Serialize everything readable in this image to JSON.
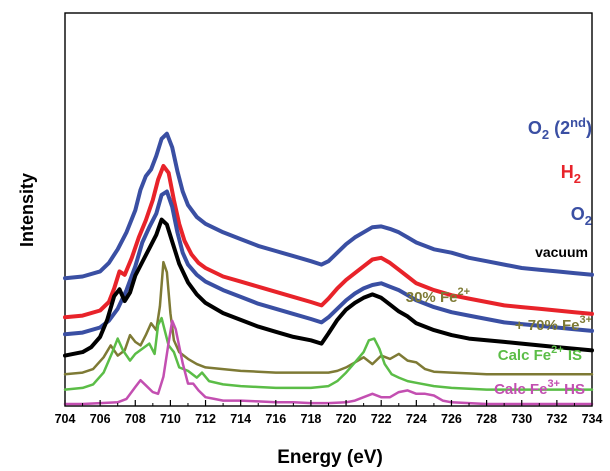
{
  "chart_data": {
    "type": "line",
    "title": "",
    "xlabel": "Energy (eV)",
    "ylabel": "Intensity",
    "xlim": [
      704,
      734
    ],
    "xticks": [
      704,
      706,
      708,
      710,
      712,
      714,
      716,
      718,
      720,
      722,
      724,
      726,
      728,
      730,
      732,
      734
    ],
    "ylim": [
      0,
      1
    ],
    "grid": false,
    "legend": "none",
    "series": [
      {
        "name": "O2 (2nd)",
        "label_parts": [
          "O",
          "2",
          " (2",
          "nd",
          ")"
        ],
        "color": "#3a4fa3",
        "offset": 0.71,
        "x": [
          704,
          705,
          706,
          706.5,
          707,
          707.5,
          708,
          708.3,
          708.6,
          708.9,
          709.2,
          709.5,
          709.8,
          710.1,
          710.4,
          710.7,
          711,
          711.5,
          712,
          713,
          714,
          715,
          716,
          717,
          718,
          718.6,
          719,
          719.5,
          720,
          720.5,
          721,
          721.5,
          722,
          722.5,
          723,
          723.5,
          724,
          725,
          726,
          727,
          728,
          729,
          730,
          731,
          732,
          733,
          734
        ],
        "values": [
          0.03,
          0.04,
          0.07,
          0.12,
          0.2,
          0.3,
          0.43,
          0.55,
          0.63,
          0.67,
          0.75,
          0.85,
          0.88,
          0.8,
          0.66,
          0.54,
          0.46,
          0.39,
          0.35,
          0.3,
          0.26,
          0.22,
          0.19,
          0.16,
          0.13,
          0.11,
          0.13,
          0.18,
          0.23,
          0.27,
          0.3,
          0.33,
          0.335,
          0.32,
          0.3,
          0.27,
          0.24,
          0.2,
          0.18,
          0.15,
          0.13,
          0.11,
          0.09,
          0.08,
          0.07,
          0.06,
          0.05
        ]
      },
      {
        "name": "H2",
        "label_parts": [
          "H",
          "2"
        ],
        "color": "#e8232a",
        "offset": 0.5,
        "x": [
          704,
          705,
          706,
          706.5,
          706.8,
          707.1,
          707.4,
          707.8,
          708.2,
          708.6,
          709,
          709.3,
          709.6,
          709.9,
          710.2,
          710.5,
          710.8,
          711.2,
          711.6,
          712,
          713,
          714,
          715,
          716,
          717,
          718,
          718.6,
          719,
          719.5,
          720,
          720.5,
          721,
          721.5,
          722,
          722.5,
          723,
          723.5,
          724,
          725,
          726,
          727,
          728,
          729,
          730,
          731,
          732,
          733,
          734
        ],
        "values": [
          0.01,
          0.02,
          0.05,
          0.1,
          0.18,
          0.28,
          0.26,
          0.36,
          0.48,
          0.58,
          0.7,
          0.82,
          0.9,
          0.86,
          0.7,
          0.56,
          0.46,
          0.38,
          0.33,
          0.3,
          0.25,
          0.22,
          0.19,
          0.16,
          0.13,
          0.1,
          0.08,
          0.12,
          0.18,
          0.23,
          0.27,
          0.31,
          0.35,
          0.36,
          0.33,
          0.29,
          0.25,
          0.21,
          0.17,
          0.14,
          0.12,
          0.1,
          0.08,
          0.07,
          0.06,
          0.05,
          0.04,
          0.03
        ]
      },
      {
        "name": "O2",
        "label_parts": [
          "O",
          "2"
        ],
        "color": "#3a4fa3",
        "offset": 0.39,
        "x": [
          704,
          705,
          706,
          706.5,
          707,
          707.5,
          708,
          708.4,
          708.8,
          709.2,
          709.5,
          709.8,
          710.1,
          710.4,
          710.7,
          711,
          711.5,
          712,
          713,
          714,
          715,
          716,
          717,
          718,
          718.6,
          719,
          719.5,
          720,
          720.5,
          721,
          721.5,
          722,
          722.5,
          723,
          723.5,
          724,
          725,
          726,
          727,
          728,
          729,
          730,
          731,
          732,
          733,
          734
        ],
        "values": [
          0.02,
          0.03,
          0.06,
          0.1,
          0.17,
          0.28,
          0.42,
          0.56,
          0.65,
          0.73,
          0.84,
          0.86,
          0.77,
          0.62,
          0.5,
          0.43,
          0.37,
          0.33,
          0.28,
          0.24,
          0.2,
          0.17,
          0.14,
          0.11,
          0.09,
          0.12,
          0.17,
          0.22,
          0.26,
          0.29,
          0.31,
          0.32,
          0.3,
          0.28,
          0.25,
          0.22,
          0.18,
          0.15,
          0.13,
          0.11,
          0.09,
          0.08,
          0.07,
          0.06,
          0.05,
          0.04
        ]
      },
      {
        "name": "vacuum",
        "label_parts": [
          "vacuum"
        ],
        "color": "#000000",
        "offset": 0.275,
        "x": [
          704,
          705,
          705.5,
          706,
          706.4,
          706.8,
          707.1,
          707.4,
          707.7,
          708,
          708.4,
          708.8,
          709.2,
          709.5,
          709.8,
          710.1,
          710.5,
          711,
          711.5,
          712,
          713,
          714,
          715,
          716,
          717,
          718,
          718.6,
          719,
          719.5,
          720,
          720.5,
          721,
          721.5,
          722,
          722.5,
          723,
          723.5,
          724,
          725,
          726,
          727,
          728,
          729,
          730,
          731,
          732,
          733,
          734
        ],
        "values": [
          0.01,
          0.03,
          0.06,
          0.12,
          0.22,
          0.36,
          0.4,
          0.33,
          0.38,
          0.48,
          0.56,
          0.64,
          0.72,
          0.81,
          0.78,
          0.68,
          0.55,
          0.44,
          0.37,
          0.32,
          0.26,
          0.22,
          0.18,
          0.15,
          0.12,
          0.1,
          0.08,
          0.14,
          0.22,
          0.28,
          0.32,
          0.35,
          0.37,
          0.35,
          0.31,
          0.27,
          0.24,
          0.2,
          0.16,
          0.13,
          0.11,
          0.1,
          0.09,
          0.08,
          0.07,
          0.06,
          0.05,
          0.04
        ]
      },
      {
        "name": "30% Fe2+ + 70% Fe3+",
        "label_parts": [
          "30% Fe",
          "2+"
        ],
        "label2_parts": [
          "+ 70% Fe",
          "3+"
        ],
        "color": "#7e7a35",
        "offset": 0.175,
        "x": [
          704,
          705,
          705.6,
          706.2,
          706.6,
          707,
          707.4,
          707.7,
          708,
          708.3,
          708.6,
          708.9,
          709.2,
          709.4,
          709.6,
          709.8,
          710,
          710.2,
          710.5,
          711,
          711.5,
          712,
          713,
          714,
          715,
          716,
          717,
          718,
          719,
          719.5,
          720,
          720.5,
          721,
          721.5,
          722,
          722.5,
          723,
          723.5,
          724,
          724.5,
          725,
          726,
          727,
          728,
          729,
          730,
          731,
          732,
          733,
          734
        ],
        "values": [
          0,
          0.01,
          0.03,
          0.1,
          0.17,
          0.11,
          0.14,
          0.23,
          0.19,
          0.17,
          0.23,
          0.3,
          0.26,
          0.4,
          0.66,
          0.6,
          0.36,
          0.2,
          0.13,
          0.09,
          0.06,
          0.04,
          0.03,
          0.02,
          0.015,
          0.01,
          0.01,
          0.01,
          0.01,
          0.02,
          0.04,
          0.07,
          0.1,
          0.06,
          0.11,
          0.09,
          0.12,
          0.08,
          0.07,
          0.03,
          0.015,
          0.01,
          0.005,
          0,
          0,
          0,
          0,
          0,
          0,
          0
        ]
      },
      {
        "name": "Calc Fe2+ IS",
        "label_parts": [
          "Calc Fe",
          "2+",
          " IS"
        ],
        "color": "#5bbd47",
        "offset": 0.085,
        "x": [
          704,
          705,
          705.6,
          706.2,
          706.7,
          707,
          707.3,
          707.7,
          708,
          708.4,
          708.8,
          709.1,
          709.3,
          709.5,
          709.7,
          709.9,
          710.2,
          710.5,
          711,
          711.5,
          711.8,
          712.2,
          713,
          714,
          715,
          716,
          717,
          718,
          719,
          719.5,
          720,
          720.5,
          721,
          721.3,
          721.6,
          721.9,
          722.2,
          722.6,
          723,
          723.5,
          724,
          725,
          726,
          727,
          728,
          729,
          730,
          731,
          732,
          733,
          734
        ],
        "values": [
          0,
          0.01,
          0.03,
          0.1,
          0.22,
          0.3,
          0.23,
          0.17,
          0.21,
          0.24,
          0.27,
          0.21,
          0.38,
          0.42,
          0.34,
          0.26,
          0.22,
          0.13,
          0.11,
          0.07,
          0.1,
          0.05,
          0.03,
          0.02,
          0.015,
          0.01,
          0.01,
          0.01,
          0.02,
          0.05,
          0.1,
          0.16,
          0.22,
          0.29,
          0.3,
          0.24,
          0.15,
          0.09,
          0.07,
          0.05,
          0.04,
          0.02,
          0.01,
          0.005,
          0,
          0,
          0,
          0,
          0,
          0,
          0
        ]
      },
      {
        "name": "Calc Fe3+ HS",
        "label_parts": [
          "Calc Fe",
          "3+",
          " HS"
        ],
        "color": "#c34fb1",
        "offset": 0.0,
        "x": [
          704,
          705,
          706,
          707,
          707.5,
          708,
          708.3,
          708.6,
          709,
          709.3,
          709.6,
          709.9,
          710.1,
          710.3,
          710.5,
          710.7,
          711,
          711.3,
          711.6,
          712,
          712.5,
          713,
          714,
          715,
          716,
          717,
          718,
          719,
          720,
          720.5,
          721,
          721.5,
          722,
          722.5,
          723,
          723.5,
          724,
          724.5,
          725,
          725.5,
          726,
          727,
          728,
          729,
          730,
          731,
          732,
          733,
          734
        ],
        "values": [
          0,
          0,
          0.005,
          0.01,
          0.03,
          0.1,
          0.14,
          0.11,
          0.07,
          0.06,
          0.16,
          0.36,
          0.49,
          0.44,
          0.34,
          0.24,
          0.12,
          0.12,
          0.08,
          0.04,
          0.03,
          0.02,
          0.02,
          0.015,
          0.01,
          0.01,
          0.005,
          0.005,
          0.01,
          0.02,
          0.04,
          0.06,
          0.04,
          0.04,
          0.07,
          0.08,
          0.06,
          0.06,
          0.05,
          0.02,
          0.01,
          0.005,
          0,
          0,
          0,
          0,
          0,
          0,
          0
        ]
      }
    ]
  }
}
